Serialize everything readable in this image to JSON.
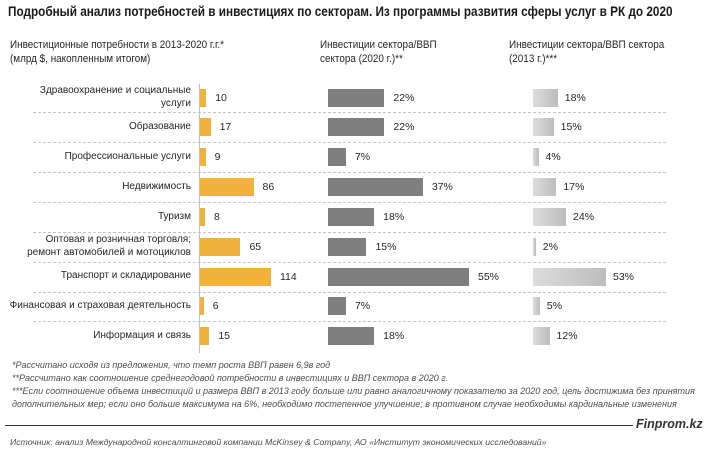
{
  "title": "Подробный  анализ потребностей  в инвестициях по секторам. Из программы  развития сферы услуг  в РК до 2020",
  "column_headers": [
    {
      "line1": "Инвестиционные потребности в 2013-2020 г.г.*",
      "line2": "(млрд $, накопленным итогом)"
    },
    {
      "line1": "Инвестиции сектора/ВВП",
      "line2": "сектора (2020 г.)**"
    },
    {
      "line1": "Инвестиции сектора/ВВП сектора",
      "line2": "(2013 г.)***"
    }
  ],
  "chart_data": {
    "type": "bar",
    "orientation": "horizontal",
    "title": "Подробный анализ потребностей в инвестициях по секторам. Из программы развития сферы услуг в РК до 2020",
    "categories": [
      "Здравоохранение и социальные\nуслуги",
      "Образование",
      "Профессиональные услуги",
      "Недвижимость",
      "Туризм",
      "Оптовая и розничная торговля;\nремонт автомобилей и мотоциклов",
      "Транспорт и складирование",
      "Финансовая и страховая деятельность",
      "Информация и связь"
    ],
    "series": [
      {
        "name": "Инвестиционные потребности в 2013-2020 г.г.* (млрд $, накопленным итогом)",
        "values": [
          10,
          17,
          9,
          86,
          8,
          65,
          114,
          6,
          15
        ],
        "unit": "",
        "color": "#F2B13A",
        "xlim": [
          0,
          114
        ]
      },
      {
        "name": "Инвестиции сектора/ВВП сектора (2020 г.)**",
        "values": [
          22,
          22,
          7,
          37,
          18,
          15,
          55,
          7,
          18
        ],
        "unit": "%",
        "color": "#7F7F7F",
        "xlim": [
          0,
          55
        ]
      },
      {
        "name": "Инвестиции сектора/ВВП сектора (2013 г.)***",
        "values": [
          18,
          15,
          4,
          17,
          24,
          2,
          53,
          5,
          12
        ],
        "unit": "%",
        "color": "#CDCDCD",
        "xlim": [
          0,
          53
        ]
      }
    ],
    "grid": "dashed row separators",
    "legend": "none"
  },
  "footnotes": [
    "*Рассчитано исходя из предложения, что темп роста ВВП равен 6,9в год",
    "**Рассчитано как соотношение среднегодовой потребности в инвестициях и ВВП сектора в 2020 г.",
    "***Если соотношение объема инвестиций и размера ВВП в 2013 году больше или равно аналогичному показателю за 2020 год, цель достижима без принятия",
    "дополнительных мер; если оно больше максимума на 6%, необходимо постепенное улучшение; в противном случае необходимы кардинальные изменения"
  ],
  "brand": "Finprom.kz",
  "source": "Источник:  анализ Международной  консалтинговой компании McKinsey & Company, АО «Институт экономических исследований»"
}
